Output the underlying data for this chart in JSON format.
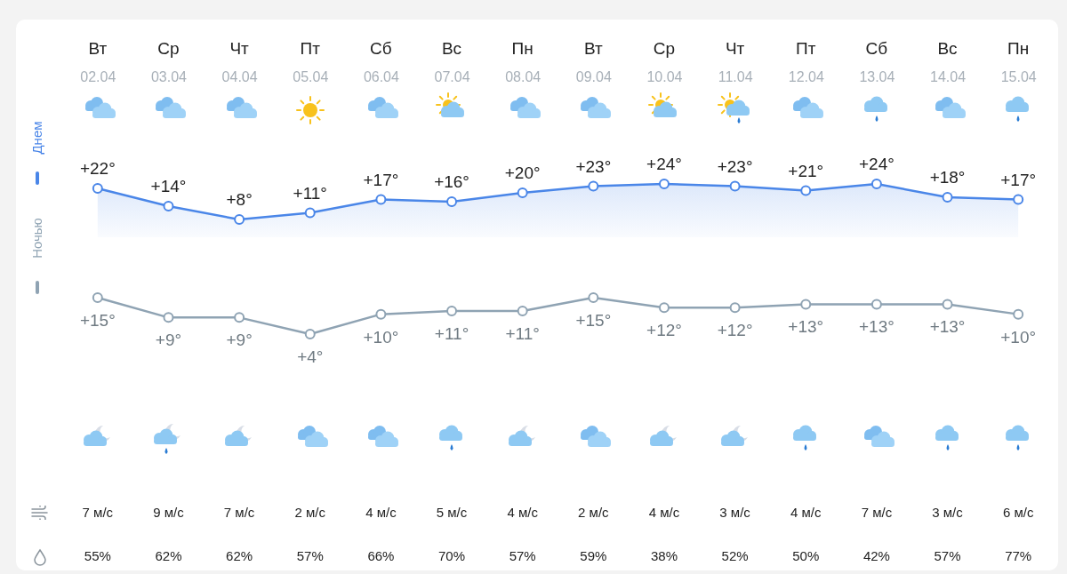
{
  "chart_data": [
    {
      "type": "area",
      "categories": [
        "02.04",
        "03.04",
        "04.04",
        "05.04",
        "06.04",
        "07.04",
        "08.04",
        "09.04",
        "10.04",
        "11.04",
        "12.04",
        "13.04",
        "14.04",
        "15.04"
      ],
      "series": [
        {
          "name": "Днем",
          "color": "#4a86e8",
          "values": [
            22,
            14,
            8,
            11,
            17,
            16,
            20,
            23,
            24,
            23,
            21,
            24,
            18,
            17
          ],
          "value_labels": [
            "+22°",
            "+14°",
            "+8°",
            "+11°",
            "+17°",
            "+16°",
            "+20°",
            "+23°",
            "+24°",
            "+23°",
            "+21°",
            "+24°",
            "+18°",
            "+17°"
          ]
        }
      ],
      "tick_labels": "x",
      "marker": "circle",
      "legend": "left",
      "annotations": [
        "Вт",
        "Ср",
        "Чт",
        "Пт",
        "Сб",
        "Вс",
        "Пн",
        "Вт",
        "Ср",
        "Чт",
        "Пт",
        "Сб",
        "Вс",
        "Пн"
      ]
    },
    {
      "type": "line",
      "categories": [
        "02.04",
        "03.04",
        "04.04",
        "05.04",
        "06.04",
        "07.04",
        "08.04",
        "09.04",
        "10.04",
        "11.04",
        "12.04",
        "13.04",
        "14.04",
        "15.04"
      ],
      "series": [
        {
          "name": "Ночью",
          "color": "#8fa3b3",
          "values": [
            15,
            9,
            9,
            4,
            10,
            11,
            11,
            15,
            12,
            12,
            13,
            13,
            13,
            10
          ],
          "value_labels": [
            "+15°",
            "+9°",
            "+9°",
            "+4°",
            "+10°",
            "+11°",
            "+11°",
            "+15°",
            "+12°",
            "+12°",
            "+13°",
            "+13°",
            "+13°",
            "+10°"
          ]
        }
      ],
      "tick_labels": false,
      "marker": "circle",
      "legend": "left",
      "annotations": [
        "7 м/с",
        "9 м/с",
        "7 м/с",
        "2 м/с",
        "4 м/с",
        "5 м/с",
        "4 м/с",
        "2 м/с",
        "4 м/с",
        "3 м/с",
        "4 м/с",
        "7 м/с",
        "3 м/с",
        "6 м/с",
        "55%",
        "62%",
        "62%",
        "57%",
        "66%",
        "70%",
        "57%",
        "59%",
        "38%",
        "52%",
        "50%",
        "42%",
        "57%",
        "77%"
      ]
    }
  ]
}
